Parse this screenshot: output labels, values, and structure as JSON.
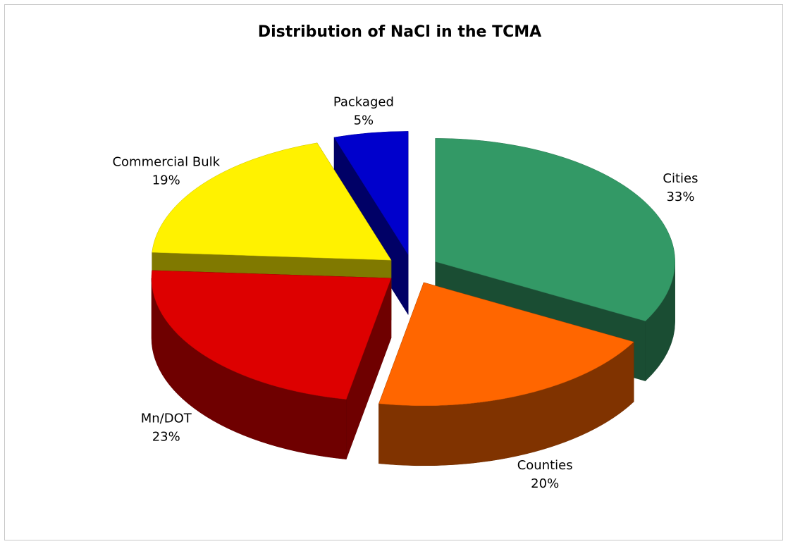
{
  "chart_data": {
    "type": "pie3d",
    "title": "Distribution of NaCl in the TCMA",
    "categories": [
      "Cities",
      "Counties",
      "Mn/DOT",
      "Commercial Bulk",
      "Packaged"
    ],
    "values": [
      33,
      20,
      23,
      19,
      5
    ],
    "value_labels": [
      "33%",
      "20%",
      "23%",
      "19%",
      "5%"
    ],
    "colors": [
      "#339966",
      "#ff6600",
      "#dd0000",
      "#fff200",
      "#0000cc"
    ]
  }
}
